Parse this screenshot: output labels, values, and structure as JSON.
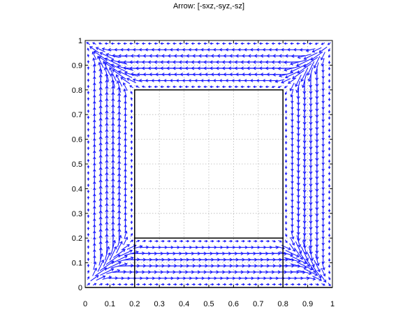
{
  "chart_data": {
    "type": "quiver",
    "title": "Arrow: [-sxz,-syz,-sz]",
    "xlabel": "",
    "ylabel": "",
    "xlim": [
      0,
      1
    ],
    "ylim": [
      0,
      1
    ],
    "xticks": [
      "0",
      "0.1",
      "0.2",
      "0.3",
      "0.4",
      "0.5",
      "0.6",
      "0.7",
      "0.8",
      "0.9",
      "1"
    ],
    "yticks": [
      "0",
      "0.1",
      "0.2",
      "0.3",
      "0.4",
      "0.5",
      "0.6",
      "0.7",
      "0.8",
      "0.9",
      "1"
    ],
    "grid": true,
    "arrow_color": "#1a1aff",
    "inner_square": {
      "x": [
        0.2,
        0.8
      ],
      "y": [
        0.2,
        0.8
      ]
    },
    "domain_edges": [
      {
        "x": [
          0,
          1
        ],
        "y": [
          0,
          0
        ]
      },
      {
        "x": [
          0.2,
          0.2
        ],
        "y": [
          0,
          0.2
        ]
      },
      {
        "x": [
          0.8,
          0.8
        ],
        "y": [
          0,
          0.2
        ]
      }
    ],
    "field": {
      "description": "clockwise circulation around inner square",
      "grid_spacing": 0.025
    }
  }
}
